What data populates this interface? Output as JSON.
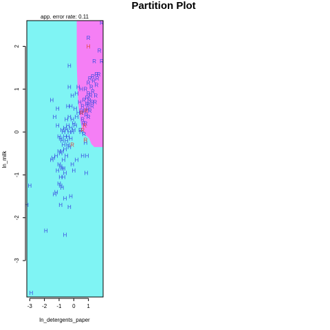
{
  "chart_data": {
    "type": "scatter",
    "title": "Partition Plot",
    "subtitle": "app. error rate: 0.11",
    "xlabel": "ln_detergents_paper",
    "ylabel": "ln_milk",
    "xlim": [
      -3.2,
      2.0
    ],
    "ylim": [
      -3.85,
      2.6
    ],
    "xticks": [
      -3,
      -2,
      -1,
      0,
      1
    ],
    "yticks": [
      -3,
      -2,
      -1,
      0,
      1,
      2
    ],
    "xtick_labels": [
      "-3",
      "-2",
      "-1",
      "0",
      "1"
    ],
    "ytick_labels": [
      "-3",
      "-2",
      "-1",
      "0",
      "1",
      "2"
    ],
    "grid": false,
    "legend": "none",
    "regions": [
      {
        "label": "H",
        "color": "#7ff4f4"
      },
      {
        "label": "R",
        "color": "#f57ff5"
      }
    ],
    "point_colors": {
      "correct": "#3b4de0",
      "misclassified": "#e0433b"
    },
    "boundary_R": [
      [
        0.2,
        2.6
      ],
      [
        2.0,
        2.6
      ],
      [
        2.0,
        -0.35
      ],
      [
        1.4,
        -0.35
      ],
      [
        1.2,
        -0.28
      ],
      [
        1.05,
        -0.15
      ],
      [
        0.75,
        -0.05
      ],
      [
        0.55,
        0.1
      ],
      [
        0.4,
        0.35
      ],
      [
        0.3,
        0.7
      ],
      [
        0.25,
        1.1
      ],
      [
        0.2,
        1.6
      ],
      [
        0.2,
        2.6
      ]
    ],
    "series": [
      {
        "name": "H",
        "points": [
          [
            -2.9,
            -3.75
          ],
          [
            -3.0,
            -1.25
          ],
          [
            -3.2,
            -1.7
          ],
          [
            -1.9,
            -2.3
          ],
          [
            -0.6,
            -2.4
          ],
          [
            -0.9,
            -1.7
          ],
          [
            -0.6,
            -1.55
          ],
          [
            -0.3,
            -1.75
          ],
          [
            -0.2,
            -1.5
          ],
          [
            -1.2,
            -1.4
          ],
          [
            -1.3,
            -1.45
          ],
          [
            -0.9,
            -1.25
          ],
          [
            -1.0,
            -1.2
          ],
          [
            -0.8,
            -1.3
          ],
          [
            -0.7,
            -1.05
          ],
          [
            -0.9,
            -1.05
          ],
          [
            -0.6,
            -0.95
          ],
          [
            -0.7,
            -0.85
          ],
          [
            -1.1,
            -0.9
          ],
          [
            -0.9,
            -0.8
          ],
          [
            -0.8,
            -0.85
          ],
          [
            -1.0,
            -0.75
          ],
          [
            -0.7,
            -0.65
          ],
          [
            -0.5,
            -0.55
          ],
          [
            -1.4,
            -0.6
          ],
          [
            -1.5,
            -0.65
          ],
          [
            -1.2,
            -0.55
          ],
          [
            -0.9,
            -0.5
          ],
          [
            -0.8,
            -0.45
          ],
          [
            -0.6,
            -0.4
          ],
          [
            -1.0,
            -0.45
          ],
          [
            -0.7,
            -0.3
          ],
          [
            -0.4,
            -0.3
          ],
          [
            -0.3,
            -0.35
          ],
          [
            -0.5,
            -0.2
          ],
          [
            -0.8,
            -0.2
          ],
          [
            -0.9,
            -0.15
          ],
          [
            -0.6,
            -0.1
          ],
          [
            -0.4,
            -0.1
          ],
          [
            -0.2,
            -0.15
          ],
          [
            -1.0,
            -0.1
          ],
          [
            -0.7,
            0.0
          ],
          [
            -0.5,
            0.05
          ],
          [
            -0.3,
            0.0
          ],
          [
            -0.1,
            0.0
          ],
          [
            0.0,
            0.05
          ],
          [
            -0.2,
            0.1
          ],
          [
            -0.4,
            0.15
          ],
          [
            -0.6,
            0.1
          ],
          [
            -0.8,
            0.05
          ],
          [
            0.1,
            0.15
          ],
          [
            0.0,
            0.2
          ],
          [
            -0.1,
            0.3
          ],
          [
            -0.3,
            0.35
          ],
          [
            -0.5,
            0.3
          ],
          [
            0.2,
            0.35
          ],
          [
            0.3,
            0.45
          ],
          [
            0.1,
            0.55
          ],
          [
            -0.2,
            0.6
          ],
          [
            -0.4,
            0.6
          ],
          [
            -1.3,
            0.35
          ],
          [
            -1.5,
            0.75
          ],
          [
            -0.1,
            0.85
          ],
          [
            0.2,
            0.9
          ],
          [
            0.3,
            1.05
          ],
          [
            -0.3,
            1.05
          ],
          [
            -1.1,
            0.55
          ],
          [
            -0.3,
            1.55
          ],
          [
            0.5,
            0.0
          ],
          [
            0.8,
            -0.25
          ],
          [
            0.6,
            -0.55
          ],
          [
            0.9,
            -0.55
          ],
          [
            0.85,
            -0.95
          ],
          [
            0.2,
            -0.65
          ],
          [
            -0.1,
            -0.75
          ],
          [
            0.0,
            -0.9
          ],
          [
            -1.1,
            0.15
          ],
          [
            0.4,
            0.7
          ],
          [
            0.5,
            1.0
          ]
        ]
      },
      {
        "name": "R",
        "points": [
          [
            1.9,
            2.55
          ],
          [
            1.0,
            2.2
          ],
          [
            1.75,
            1.9
          ],
          [
            1.4,
            1.65
          ],
          [
            1.9,
            1.65
          ],
          [
            1.7,
            1.35
          ],
          [
            1.6,
            1.25
          ],
          [
            1.1,
            1.25
          ],
          [
            1.35,
            1.2
          ],
          [
            1.0,
            1.15
          ],
          [
            1.55,
            1.1
          ],
          [
            1.2,
            1.05
          ],
          [
            0.8,
            1.0
          ],
          [
            1.3,
            0.95
          ],
          [
            1.0,
            0.9
          ],
          [
            1.15,
            0.85
          ],
          [
            1.5,
            0.85
          ],
          [
            0.9,
            0.8
          ],
          [
            1.05,
            0.75
          ],
          [
            1.25,
            0.7
          ],
          [
            0.7,
            0.75
          ],
          [
            1.0,
            0.65
          ],
          [
            1.45,
            0.7
          ],
          [
            0.6,
            0.6
          ],
          [
            0.95,
            0.55
          ],
          [
            1.1,
            0.5
          ],
          [
            0.75,
            0.5
          ],
          [
            0.5,
            0.5
          ],
          [
            0.85,
            0.4
          ],
          [
            1.0,
            0.35
          ],
          [
            0.6,
            0.3
          ],
          [
            0.8,
            0.2
          ],
          [
            0.45,
            0.05
          ],
          [
            0.7,
            -0.05
          ],
          [
            0.5,
            0.45
          ],
          [
            1.25,
            0.6
          ],
          [
            0.65,
            0.2
          ],
          [
            0.9,
            0.65
          ],
          [
            1.3,
            1.3
          ],
          [
            1.55,
            1.35
          ]
        ]
      }
    ],
    "misclassified": [
      {
        "label": "H",
        "x": 1.0,
        "y": 2.0
      },
      {
        "label": "R",
        "x": 0.8,
        "y": -0.18
      },
      {
        "label": "R",
        "x": 0.85,
        "y": 0.5
      },
      {
        "label": "R",
        "x": 0.55,
        "y": 0.45
      },
      {
        "label": "R",
        "x": 0.6,
        "y": 0.05
      },
      {
        "label": "R",
        "x": 0.75,
        "y": 0.15
      },
      {
        "label": "R",
        "x": -0.1,
        "y": -0.3
      }
    ]
  }
}
